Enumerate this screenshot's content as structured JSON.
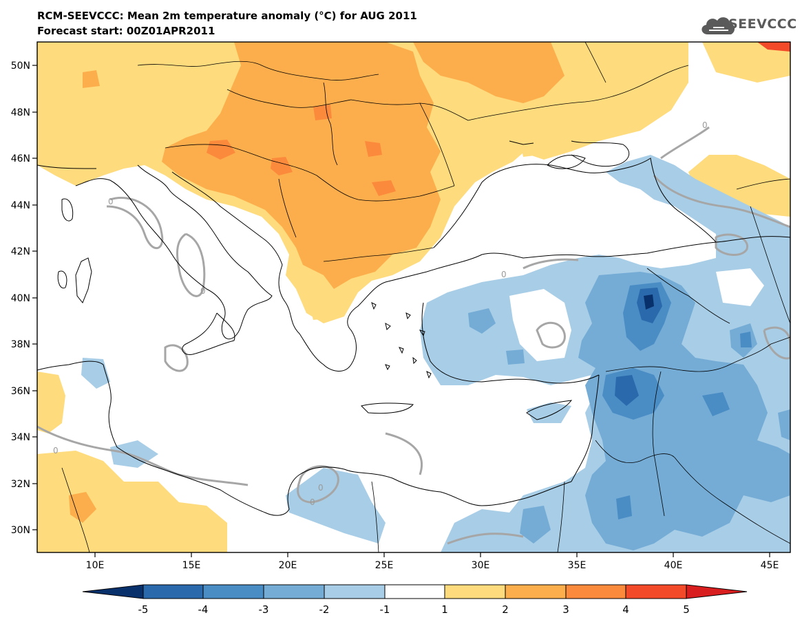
{
  "title": "RCM-SEEVCCC: Mean 2m temperature anomaly (°C) for AUG 2011",
  "subtitle": "Forecast start: 00Z01APR2011",
  "logo_text": "SEEVCCC",
  "logo_icon": "cloud-icon",
  "map": {
    "lon_range": [
      7,
      46
    ],
    "lat_range": [
      29,
      51
    ],
    "lon_ticks": [
      "10E",
      "15E",
      "20E",
      "25E",
      "30E",
      "35E",
      "40E",
      "45E"
    ],
    "lat_ticks": [
      "30N",
      "32N",
      "34N",
      "36N",
      "38N",
      "40N",
      "42N",
      "44N",
      "46N",
      "48N",
      "50N"
    ],
    "contour_labels": [
      "0",
      "0",
      "0",
      "0",
      "0",
      "0",
      "0"
    ]
  },
  "colorbar": {
    "labels": [
      "-5",
      "-4",
      "-3",
      "-2",
      "-1",
      "1",
      "2",
      "3",
      "4",
      "5"
    ],
    "colors": [
      "#08306b",
      "#2a6aac",
      "#4a8cc4",
      "#74acd6",
      "#a8cde6",
      "#ffffff",
      "#fedb7c",
      "#fdae4c",
      "#fc8a3c",
      "#f34a2a",
      "#d81e1e"
    ]
  }
}
